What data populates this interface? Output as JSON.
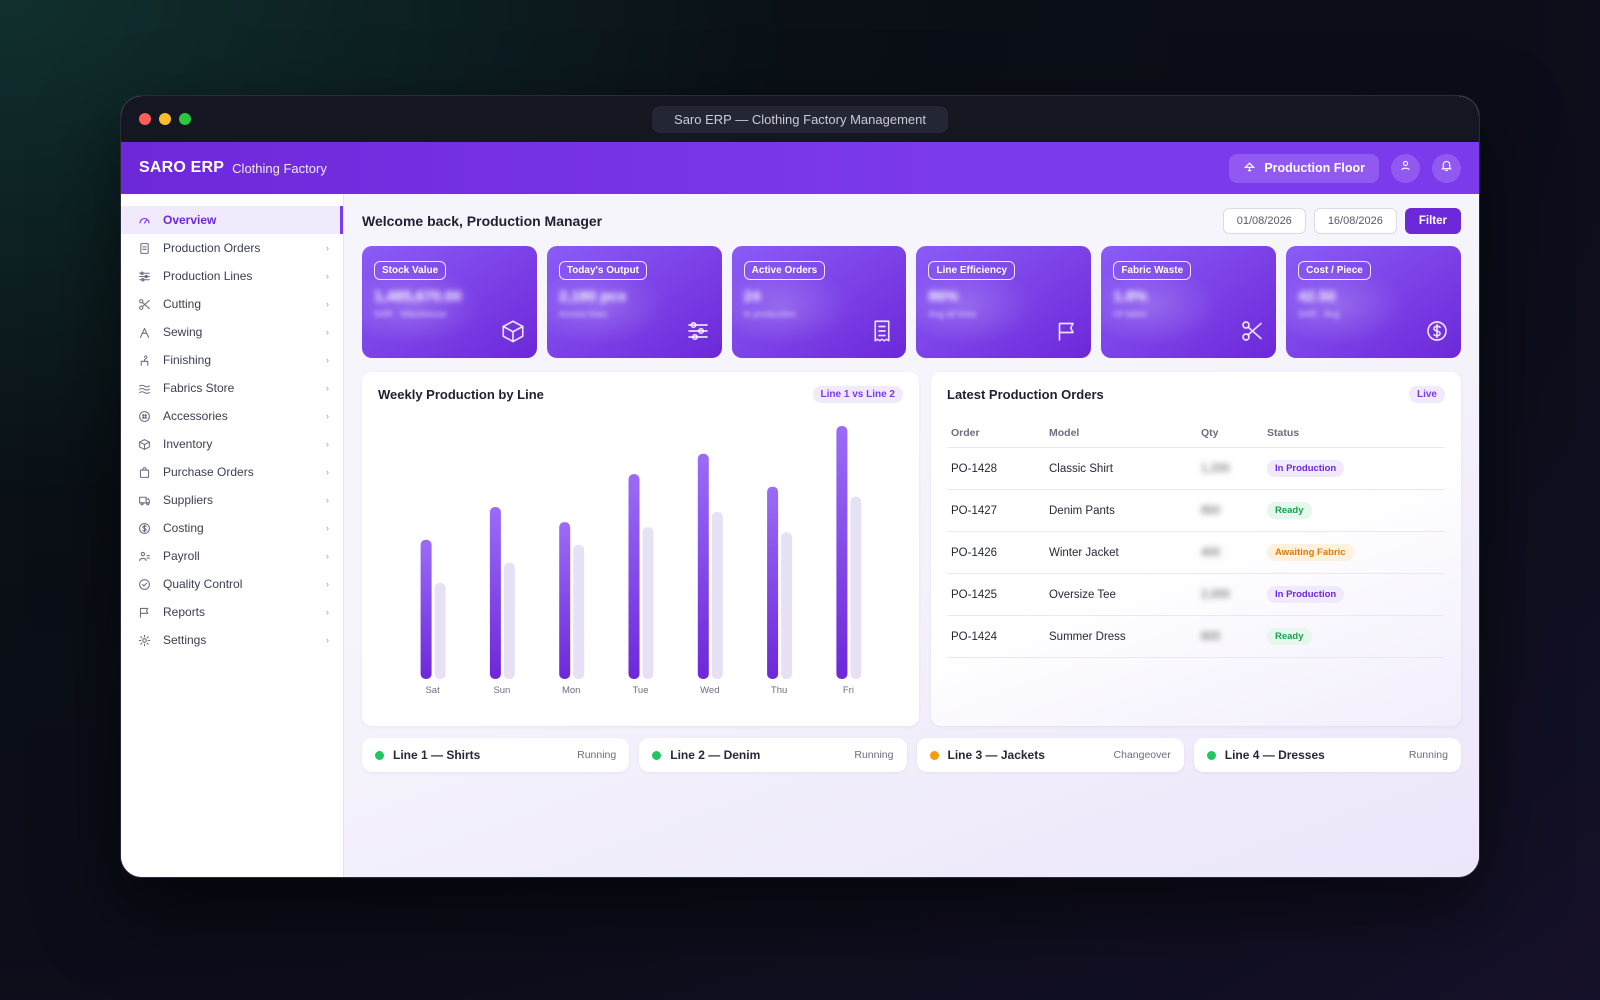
{
  "window": {
    "title": "Saro ERP — Clothing Factory Management"
  },
  "appbar": {
    "brand": "SARO ERP",
    "subtitle": "Clothing Factory",
    "floor_button": "Production Floor"
  },
  "sidebar": {
    "items": [
      {
        "label": "Overview",
        "icon": "gauge-icon",
        "active": true
      },
      {
        "label": "Production Orders",
        "icon": "document-icon"
      },
      {
        "label": "Production Lines",
        "icon": "sliders-icon"
      },
      {
        "label": "Cutting",
        "icon": "scissors-icon"
      },
      {
        "label": "Sewing",
        "icon": "needle-icon"
      },
      {
        "label": "Finishing",
        "icon": "hanger-icon"
      },
      {
        "label": "Fabrics Store",
        "icon": "waves-icon"
      },
      {
        "label": "Accessories",
        "icon": "button-icon"
      },
      {
        "label": "Inventory",
        "icon": "box-icon"
      },
      {
        "label": "Purchase Orders",
        "icon": "bag-icon"
      },
      {
        "label": "Suppliers",
        "icon": "truck-icon"
      },
      {
        "label": "Costing",
        "icon": "dollar-icon"
      },
      {
        "label": "Payroll",
        "icon": "users-icon"
      },
      {
        "label": "Quality Control",
        "icon": "check-circle-icon"
      },
      {
        "label": "Reports",
        "icon": "flag-icon"
      },
      {
        "label": "Settings",
        "icon": "gear-icon"
      }
    ]
  },
  "header": {
    "welcome": "Welcome back, Production Manager",
    "date_from": "01/08/2026",
    "date_to": "16/08/2026",
    "filter_label": "Filter"
  },
  "kpis": [
    {
      "label": "Stock Value",
      "value": "1,485,670.00",
      "sub": "SAR · Warehouse",
      "icon": "cube-icon"
    },
    {
      "label": "Today's Output",
      "value": "2,180 pcs",
      "sub": "Across lines",
      "icon": "sliders-icon"
    },
    {
      "label": "Active Orders",
      "value": "24",
      "sub": "In production",
      "icon": "receipt-icon"
    },
    {
      "label": "Line Efficiency",
      "value": "86%",
      "sub": "Avg all lines",
      "icon": "flag-icon"
    },
    {
      "label": "Fabric Waste",
      "value": "1.8%",
      "sub": "Of fabric",
      "icon": "scissors-icon"
    },
    {
      "label": "Cost / Piece",
      "value": "42.50",
      "sub": "SAR · Avg",
      "icon": "dollar-icon"
    }
  ],
  "chart_panel": {
    "title": "Weekly Production by Line",
    "tag": "Line 1 vs Line 2"
  },
  "chart_data": {
    "type": "bar",
    "categories": [
      "Sat",
      "Sun",
      "Mon",
      "Tue",
      "Wed",
      "Thu",
      "Fri"
    ],
    "series": [
      {
        "name": "Line 1",
        "values": [
          55,
          68,
          62,
          81,
          89,
          76,
          100
        ],
        "color": "#7c3aed"
      },
      {
        "name": "Line 2",
        "values": [
          38,
          46,
          53,
          60,
          66,
          58,
          72
        ],
        "color": "#e6e1f5"
      }
    ],
    "ylim": [
      0,
      100
    ],
    "grid": false
  },
  "orders_panel": {
    "title": "Latest Production Orders",
    "tag": "Live",
    "columns": [
      "Order",
      "Model",
      "Qty",
      "Status"
    ],
    "rows": [
      {
        "order": "PO-1428",
        "model": "Classic Shirt",
        "qty": "1,200",
        "status": "In Production",
        "kind": "prod"
      },
      {
        "order": "PO-1427",
        "model": "Denim Pants",
        "qty": "850",
        "status": "Ready",
        "kind": "ready"
      },
      {
        "order": "PO-1426",
        "model": "Winter Jacket",
        "qty": "400",
        "status": "Awaiting Fabric",
        "kind": "await"
      },
      {
        "order": "PO-1425",
        "model": "Oversize Tee",
        "qty": "2,000",
        "status": "In Production",
        "kind": "prod"
      },
      {
        "order": "PO-1424",
        "model": "Summer Dress",
        "qty": "600",
        "status": "Ready",
        "kind": "ready"
      }
    ]
  },
  "lines": [
    {
      "name": "Line 1 — Shirts",
      "status": "Running",
      "color": "#22c55e"
    },
    {
      "name": "Line 2 — Denim",
      "status": "Running",
      "color": "#22c55e"
    },
    {
      "name": "Line 3 — Jackets",
      "status": "Changeover",
      "color": "#f59e0b"
    },
    {
      "name": "Line 4 — Dresses",
      "status": "Running",
      "color": "#22c55e"
    }
  ]
}
